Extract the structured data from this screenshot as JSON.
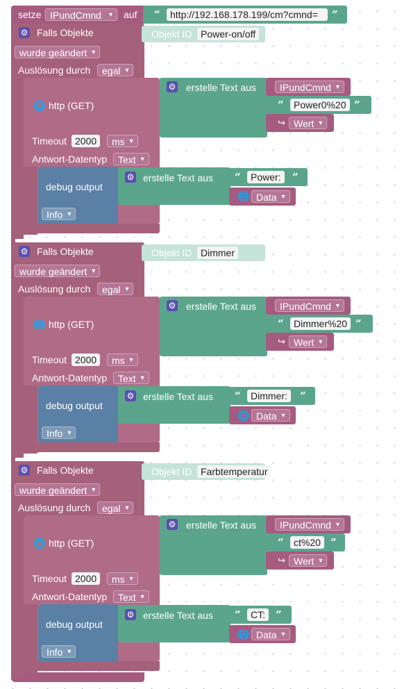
{
  "top": {
    "setze": "setze",
    "variable": "IPundCmnd",
    "auf": "auf",
    "url": "http://192.168.178.199/cm?cmnd="
  },
  "triggers": [
    {
      "falls": "Falls Objekte",
      "objekt_id_label": "Objekt ID",
      "objekt_id": "Power-on/off",
      "wurde": "wurde geändert",
      "ausloesung_label": "Auslösung durch",
      "ausloesung": "egal",
      "http": "http (GET)",
      "erstelle": "erstelle Text aus",
      "var": "IPundCmnd",
      "cmd": "Power0%20",
      "wert": "Wert",
      "timeout_label": "Timeout",
      "timeout": "2000",
      "ms": "ms",
      "antwort_label": "Antwort-Datentyp",
      "antwort": "Text",
      "debug": "debug output",
      "erstelle2": "erstelle Text aus",
      "prefix": "Power:",
      "data": "Data",
      "level": "Info"
    },
    {
      "falls": "Falls Objekte",
      "objekt_id_label": "Objekt ID",
      "objekt_id": "Dimmer",
      "wurde": "wurde geändert",
      "ausloesung_label": "Auslösung durch",
      "ausloesung": "egal",
      "http": "http (GET)",
      "erstelle": "erstelle Text aus",
      "var": "IPundCmnd",
      "cmd": "Dimmer%20",
      "wert": "Wert",
      "timeout_label": "Timeout",
      "timeout": "2000",
      "ms": "ms",
      "antwort_label": "Antwort-Datentyp",
      "antwort": "Text",
      "debug": "debug output",
      "erstelle2": "erstelle Text aus",
      "prefix": "Dimmer:",
      "data": "Data",
      "level": "Info"
    },
    {
      "falls": "Falls Objekte",
      "objekt_id_label": "Objekt ID",
      "objekt_id": "Farbtemperatur",
      "wurde": "wurde geändert",
      "ausloesung_label": "Auslösung durch",
      "ausloesung": "egal",
      "http": "http (GET)",
      "erstelle": "erstelle Text aus",
      "var": "IPundCmnd",
      "cmd": "ct%20",
      "wert": "Wert",
      "timeout_label": "Timeout",
      "timeout": "2000",
      "ms": "ms",
      "antwort_label": "Antwort-Datentyp",
      "antwort": "Text",
      "debug": "debug output",
      "erstelle2": "erstelle Text aus",
      "prefix": "CT:",
      "data": "Data",
      "level": "Info"
    }
  ],
  "icons": {
    "gear": "gear-icon",
    "globe": "globe-icon",
    "arrow": "return-arrow-icon",
    "quote": "quote-icon"
  }
}
